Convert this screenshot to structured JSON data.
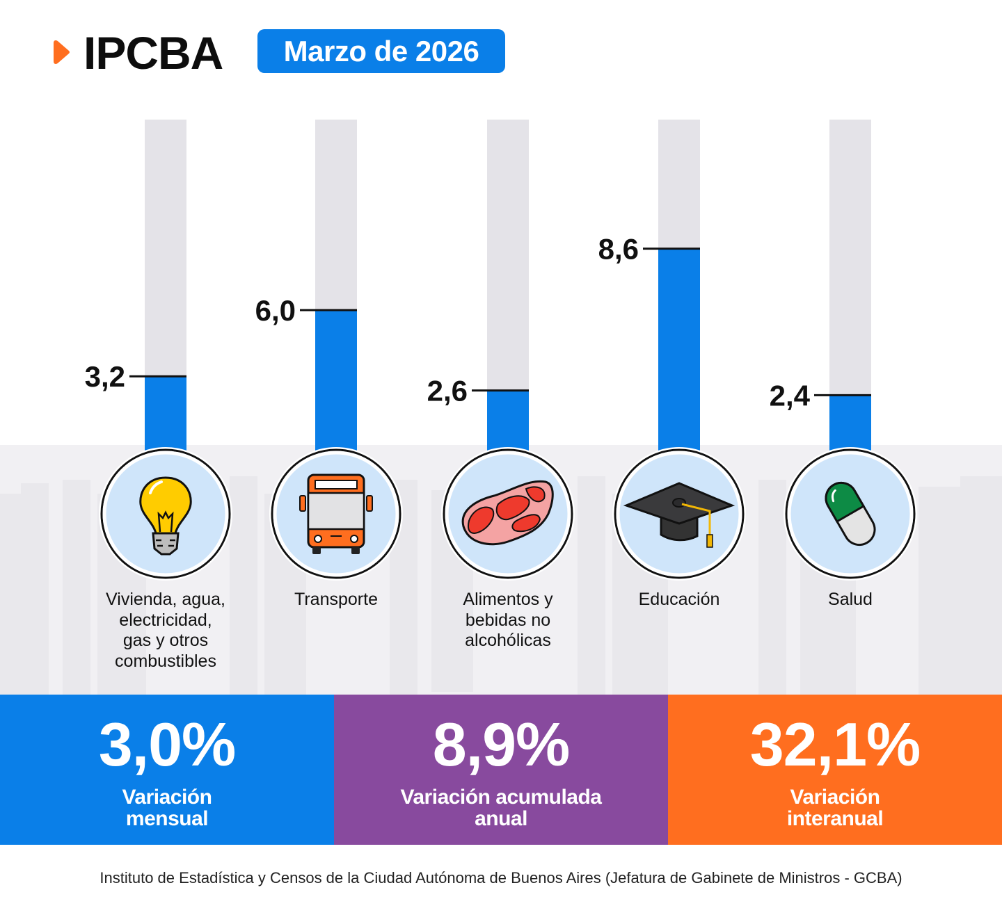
{
  "header": {
    "logo_text": "IPCBA",
    "date_badge": "Marzo de 2026"
  },
  "colors": {
    "accent_blue": "#0a7fe8",
    "track_gray": "#e4e3e8",
    "purple": "#884a9e",
    "orange": "#ff6e1f",
    "icon_bg": "#cfe5fa"
  },
  "chart_data": {
    "type": "bar",
    "title": "IPCBA Marzo de 2026",
    "xlabel": "",
    "ylabel": "",
    "categories": [
      "Vivienda, agua, electricidad, gas y otros combustibles",
      "Transporte",
      "Alimentos y bebidas no alcohólicas",
      "Educación",
      "Salud"
    ],
    "values": [
      3.2,
      6.0,
      2.6,
      8.6,
      2.4
    ],
    "value_labels": [
      "3,2",
      "6,0",
      "2,6",
      "8,6",
      "2,4"
    ],
    "grid": false,
    "legend": "none"
  },
  "categories": [
    {
      "label_lines": [
        "Vivienda, agua,",
        "electricidad,",
        "gas y otros",
        "combustibles"
      ],
      "icon": "lightbulb-icon"
    },
    {
      "label_lines": [
        "Transporte"
      ],
      "icon": "bus-icon"
    },
    {
      "label_lines": [
        "Alimentos y",
        "bebidas no",
        "alcohólicas"
      ],
      "icon": "meat-icon"
    },
    {
      "label_lines": [
        "Educación"
      ],
      "icon": "graduation-cap-icon"
    },
    {
      "label_lines": [
        "Salud"
      ],
      "icon": "pill-icon"
    }
  ],
  "stats": [
    {
      "value": "3,0%",
      "label_line1": "Variación",
      "label_line2": "mensual"
    },
    {
      "value": "8,9%",
      "label_line1": "Variación acumulada",
      "label_line2": "anual"
    },
    {
      "value": "32,1%",
      "label_line1": "Variación",
      "label_line2": "interanual"
    }
  ],
  "footer": {
    "source": "Instituto de Estadística y Censos de la Ciudad Autónoma de Buenos Aires (Jefatura de Gabinete de Ministros - GCBA)"
  }
}
